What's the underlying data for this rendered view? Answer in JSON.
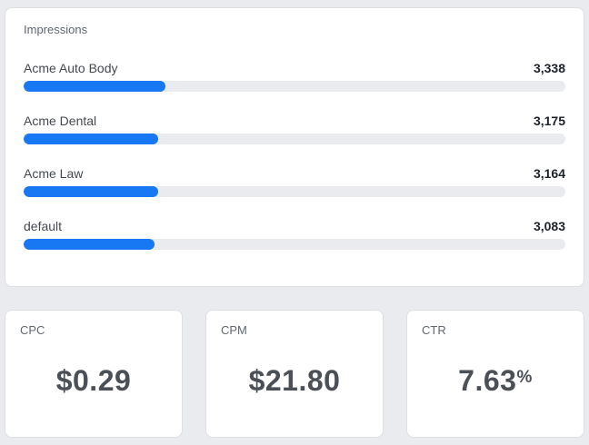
{
  "panel": {
    "title": "Impressions"
  },
  "chart_data": {
    "type": "bar",
    "orientation": "horizontal",
    "title": "Impressions",
    "categories": [
      "Acme Auto Body",
      "Acme Dental",
      "Acme Law",
      "default"
    ],
    "values": [
      3338,
      3175,
      3164,
      3083
    ],
    "value_labels": [
      "3,338",
      "3,175",
      "3,164",
      "3,083"
    ],
    "bar_scale": "share_of_total",
    "bar_color": "#1877f2",
    "track_color": "#e9ebee",
    "grid": false,
    "legend": false
  },
  "kpi_cards": [
    {
      "label": "CPC",
      "value": "$0.29",
      "suffix": ""
    },
    {
      "label": "CPM",
      "value": "$21.80",
      "suffix": ""
    },
    {
      "label": "CTR",
      "value": "7.63",
      "suffix": "%"
    }
  ],
  "colors": {
    "accent": "#1877f2",
    "page_background": "#e9ebee",
    "card_background": "#ffffff",
    "card_border": "#dddfe2",
    "muted_text": "#606770",
    "label_text": "#444950",
    "value_text": "#1d2129",
    "kpi_value_text": "#4b4f56"
  }
}
